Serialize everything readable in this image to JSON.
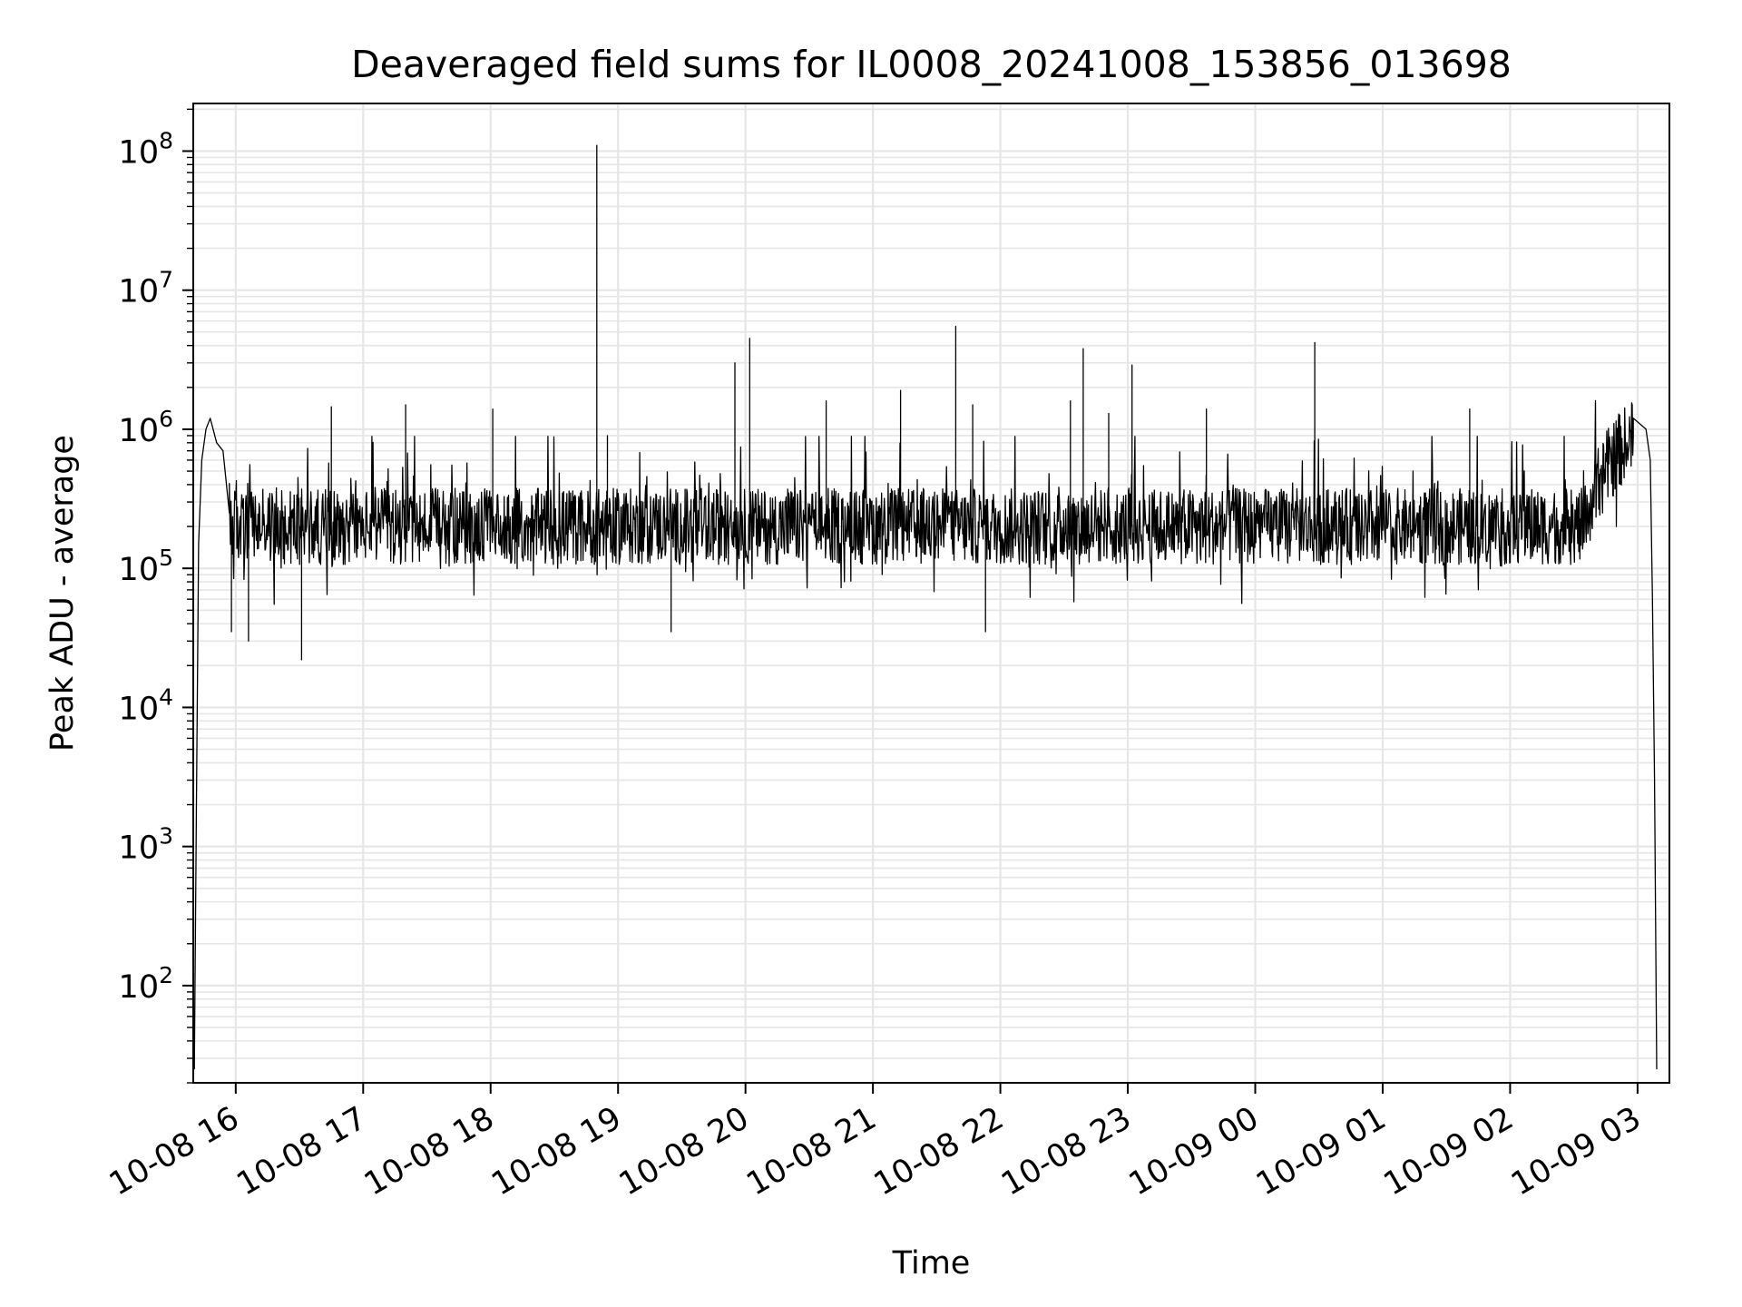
{
  "chart_data": {
    "type": "line",
    "title": "Deaveraged field sums for IL0008_20241008_153856_013698",
    "xlabel": "Time",
    "ylabel": "Peak ADU - average",
    "yscale": "log",
    "ylim": [
      20,
      220000000
    ],
    "xlim": [
      "2024-10-08T15:40:00",
      "2024-10-09T03:15:00"
    ],
    "grid": "major and minor, light gray",
    "x_ticks": [
      "10-08 16",
      "10-08 17",
      "10-08 18",
      "10-08 19",
      "10-08 20",
      "10-08 21",
      "10-08 22",
      "10-08 23",
      "10-09 00",
      "10-09 01",
      "10-09 02",
      "10-09 03"
    ],
    "x_tick_times": [
      "2024-10-08T16:00:00",
      "2024-10-08T17:00:00",
      "2024-10-08T18:00:00",
      "2024-10-08T19:00:00",
      "2024-10-08T20:00:00",
      "2024-10-08T21:00:00",
      "2024-10-08T22:00:00",
      "2024-10-08T23:00:00",
      "2024-10-09T00:00:00",
      "2024-10-09T01:00:00",
      "2024-10-09T02:00:00",
      "2024-10-09T03:00:00"
    ],
    "y_ticks": [
      {
        "base": "10",
        "exp": "2",
        "value": 100
      },
      {
        "base": "10",
        "exp": "3",
        "value": 1000
      },
      {
        "base": "10",
        "exp": "4",
        "value": 10000
      },
      {
        "base": "10",
        "exp": "5",
        "value": 100000
      },
      {
        "base": "10",
        "exp": "6",
        "value": 1000000
      },
      {
        "base": "10",
        "exp": "7",
        "value": 10000000
      },
      {
        "base": "10",
        "exp": "8",
        "value": 100000000
      }
    ],
    "line_color": "#000000",
    "grid_color": "#e6e6e6",
    "series": [
      {
        "points": [
          [
            "2024-10-08T15:40:30",
            25
          ],
          [
            "2024-10-08T15:41:30",
            2000
          ],
          [
            "2024-10-08T15:42:30",
            150000
          ],
          [
            "2024-10-08T15:44:00",
            600000
          ],
          [
            "2024-10-08T15:46:00",
            1000000
          ],
          [
            "2024-10-08T15:48:00",
            1200000
          ],
          [
            "2024-10-08T15:51:00",
            800000
          ],
          [
            "2024-10-08T15:54:00",
            700000
          ],
          [
            "2024-10-08T15:57:00",
            250000
          ],
          [
            "2024-10-08T15:58:00",
            35000
          ],
          [
            "2024-10-08T16:06:00",
            30000
          ],
          [
            "2024-10-08T16:31:00",
            22000
          ],
          [
            "2024-10-08T16:45:00",
            1450000
          ],
          [
            "2024-10-08T17:20:00",
            1500000
          ],
          [
            "2024-10-08T18:01:00",
            1400000
          ],
          [
            "2024-10-08T18:50:00",
            110000000
          ],
          [
            "2024-10-08T18:55:00",
            900000
          ],
          [
            "2024-10-08T19:25:00",
            35000
          ],
          [
            "2024-10-08T19:55:00",
            3000000
          ],
          [
            "2024-10-08T20:02:00",
            4500000
          ],
          [
            "2024-10-08T20:38:00",
            1600000
          ],
          [
            "2024-10-08T21:13:00",
            1900000
          ],
          [
            "2024-10-08T21:39:00",
            5500000
          ],
          [
            "2024-10-08T21:47:00",
            1500000
          ],
          [
            "2024-10-08T21:53:00",
            35000
          ],
          [
            "2024-10-08T22:33:00",
            1600000
          ],
          [
            "2024-10-08T22:39:00",
            3800000
          ],
          [
            "2024-10-08T22:51:00",
            1300000
          ],
          [
            "2024-10-08T23:02:00",
            2900000
          ],
          [
            "2024-10-08T23:37:00",
            1400000
          ],
          [
            "2024-10-09T00:28:00",
            4200000
          ],
          [
            "2024-10-09T01:41:00",
            1400000
          ],
          [
            "2024-10-09T02:50:00",
            900000
          ],
          [
            "2024-10-09T02:58:00",
            1200000
          ],
          [
            "2024-10-09T03:04:00",
            1000000
          ],
          [
            "2024-10-09T03:06:00",
            600000
          ],
          [
            "2024-10-09T03:07:00",
            60000
          ],
          [
            "2024-10-09T03:08:00",
            3000
          ],
          [
            "2024-10-09T03:09:00",
            25
          ]
        ],
        "baseline_level": 200000,
        "baseline_range": [
          50000,
          500000
        ]
      }
    ]
  }
}
